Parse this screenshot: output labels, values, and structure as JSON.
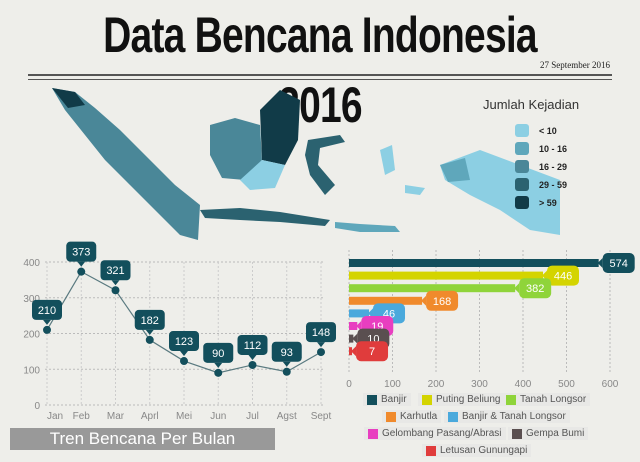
{
  "title": "Data Bencana Indonesia 2016",
  "date": "27 September 2016",
  "map_legend": {
    "title": "Jumlah Kejadian",
    "items": [
      {
        "label": "< 10",
        "color": "#8ccfe3"
      },
      {
        "label": "10 - 16",
        "color": "#5fa7bb"
      },
      {
        "label": "16 - 29",
        "color": "#4a8798"
      },
      {
        "label": "29 - 59",
        "color": "#2b6270"
      },
      {
        "label": "> 59",
        "color": "#113b48"
      }
    ]
  },
  "chart_data": [
    {
      "type": "line",
      "title": "Tren Bencana Per Bulan",
      "categories": [
        "Jan",
        "Feb",
        "Mar",
        "Aprl",
        "Mei",
        "Jun",
        "Jul",
        "Agst",
        "Sept"
      ],
      "values": [
        210,
        373,
        321,
        182,
        123,
        90,
        112,
        93,
        148
      ],
      "ylim": [
        0,
        400
      ],
      "yticks": [
        0,
        100,
        200,
        300,
        400
      ],
      "grid": true,
      "color": "#134f5c"
    },
    {
      "type": "bar",
      "orientation": "horizontal",
      "categories": [
        "Banjir",
        "Puting Beliung",
        "Tanah Longsor",
        "Karhutla",
        "Banjir & Tanah Longsor",
        "Gelombang Pasang/Abrasi",
        "Gempa Bumi",
        "Letusan Gunungapi"
      ],
      "values": [
        574,
        446,
        382,
        168,
        46,
        19,
        10,
        7
      ],
      "colors": [
        "#134f5c",
        "#d4d400",
        "#8fd43a",
        "#f08a2c",
        "#4aa9dc",
        "#e83ec0",
        "#5a4f50",
        "#e03c3c"
      ],
      "xlim": [
        0,
        600
      ],
      "xticks": [
        0,
        100,
        200,
        300,
        400,
        500,
        600
      ],
      "legend": "bottom"
    }
  ]
}
